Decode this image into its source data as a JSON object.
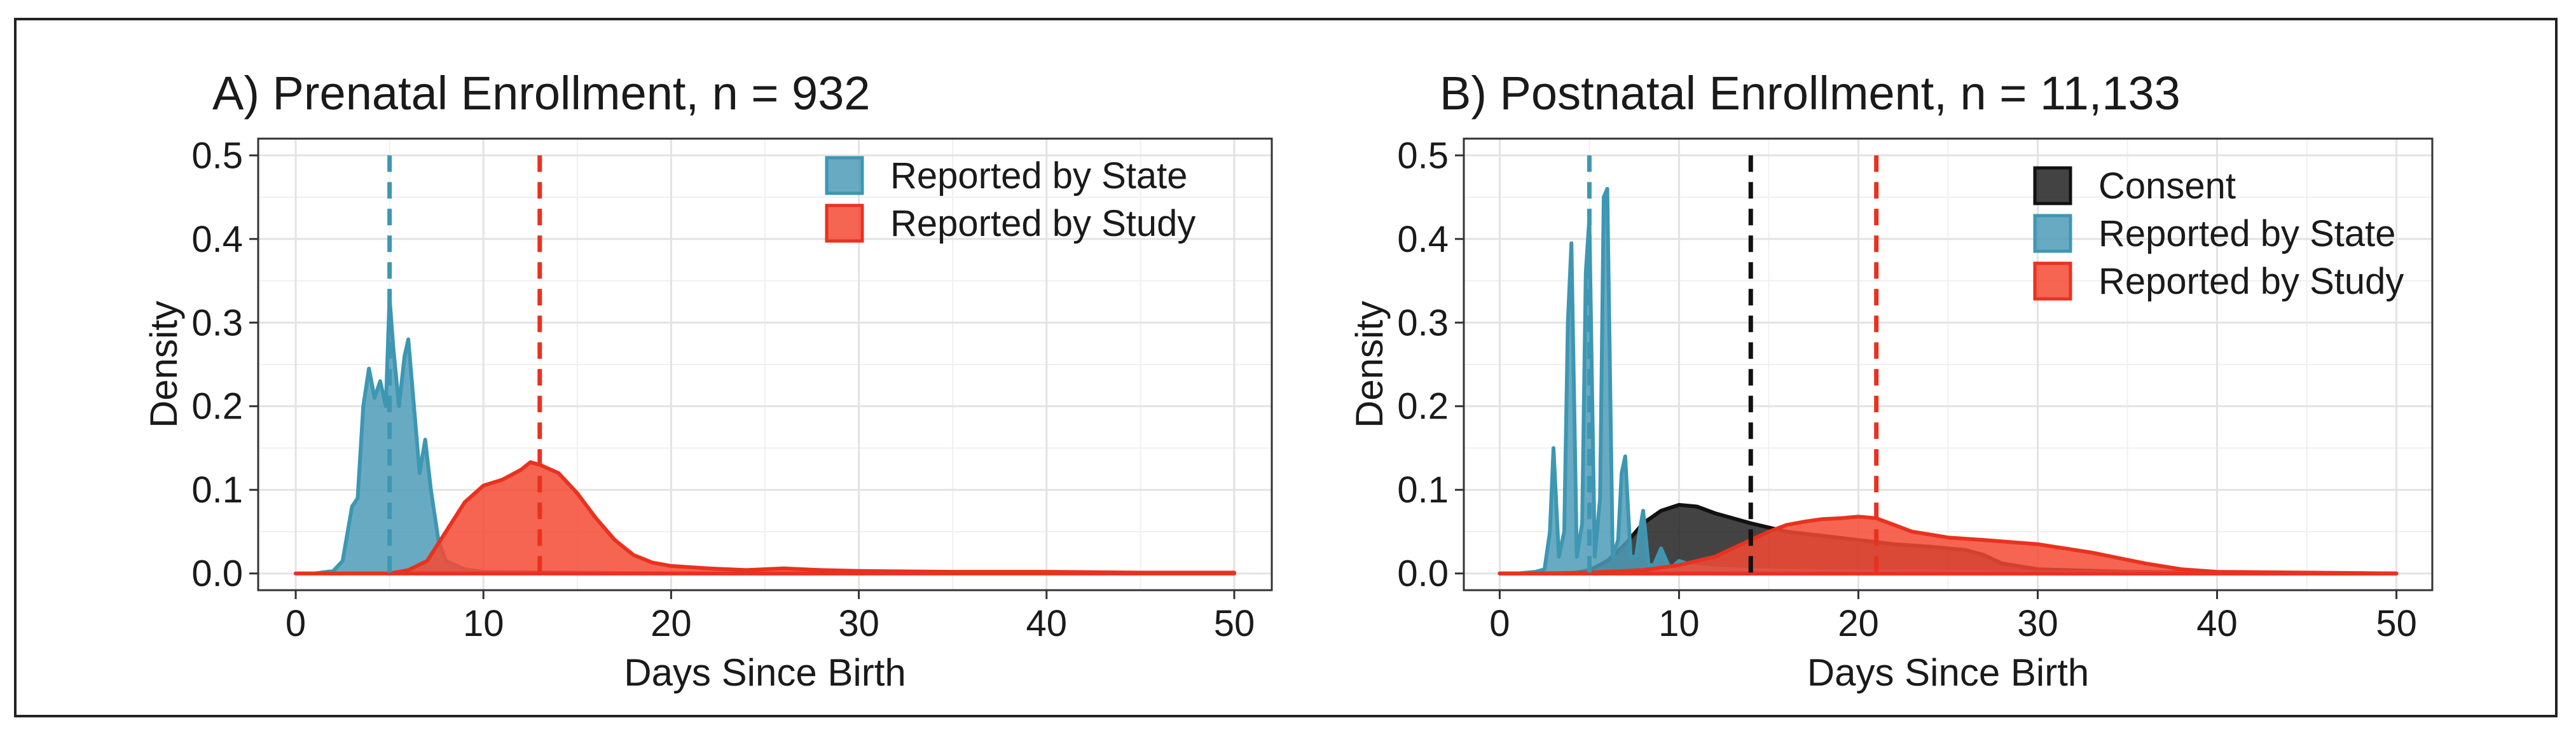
{
  "figure": {
    "panels": 2
  },
  "chart_data": [
    {
      "type": "area",
      "title": "A) Prenatal Enrollment, n = 932",
      "xlabel": "Days Since Birth",
      "ylabel": "Density",
      "xlim": [
        -2,
        52
      ],
      "ylim": [
        -0.02,
        0.52
      ],
      "xticks": [
        0,
        10,
        20,
        30,
        40,
        50
      ],
      "yticks": [
        0.0,
        0.1,
        0.2,
        0.3,
        0.4,
        0.5
      ],
      "xtick_labels": [
        "0",
        "10",
        "20",
        "30",
        "40",
        "50"
      ],
      "ytick_labels": [
        "0.0",
        "0.1",
        "0.2",
        "0.3",
        "0.4",
        "0.5"
      ],
      "grid": true,
      "legend_position": "top-right",
      "series": [
        {
          "name": "Reported by State",
          "fill": "#4f9bb8",
          "stroke": "#3d97b3",
          "fill_opacity": 0.85,
          "median": 5,
          "median_color": "#3d97b3",
          "x": [
            0,
            1,
            2,
            2.5,
            3,
            3.3,
            3.6,
            3.9,
            4.2,
            4.5,
            4.8,
            5.0,
            5.2,
            5.5,
            5.8,
            6.0,
            6.3,
            6.6,
            6.9,
            7.2,
            7.6,
            8,
            9,
            10,
            15,
            20,
            50
          ],
          "values": [
            0,
            0,
            0.003,
            0.015,
            0.08,
            0.09,
            0.2,
            0.245,
            0.21,
            0.23,
            0.2,
            0.33,
            0.27,
            0.2,
            0.26,
            0.28,
            0.2,
            0.12,
            0.16,
            0.1,
            0.04,
            0.015,
            0.005,
            0.002,
            0.001,
            0.0,
            0
          ]
        },
        {
          "name": "Reported by Study",
          "fill": "#f44a32",
          "stroke": "#e8321f",
          "fill_opacity": 0.85,
          "median": 13,
          "median_color": "#e8321f",
          "x": [
            0,
            5,
            6,
            7,
            8,
            9,
            10,
            11,
            12,
            12.5,
            13,
            14,
            15,
            16,
            17,
            18,
            19,
            20,
            22,
            24,
            26,
            28,
            30,
            35,
            40,
            45,
            50
          ],
          "values": [
            0,
            0.0,
            0.004,
            0.015,
            0.05,
            0.085,
            0.105,
            0.112,
            0.124,
            0.133,
            0.13,
            0.12,
            0.096,
            0.066,
            0.04,
            0.022,
            0.013,
            0.009,
            0.006,
            0.004,
            0.006,
            0.004,
            0.003,
            0.002,
            0.002,
            0.001,
            0.001
          ]
        }
      ]
    },
    {
      "type": "area",
      "title": "B) Postnatal Enrollment, n = 11,133",
      "xlabel": "Days Since Birth",
      "ylabel": "Density",
      "xlim": [
        -2,
        52
      ],
      "ylim": [
        -0.02,
        0.52
      ],
      "xticks": [
        0,
        10,
        20,
        30,
        40,
        50
      ],
      "yticks": [
        0.0,
        0.1,
        0.2,
        0.3,
        0.4,
        0.5
      ],
      "xtick_labels": [
        "0",
        "10",
        "20",
        "30",
        "40",
        "50"
      ],
      "ytick_labels": [
        "0.0",
        "0.1",
        "0.2",
        "0.3",
        "0.4",
        "0.5"
      ],
      "grid": true,
      "legend_position": "top-right",
      "series": [
        {
          "name": "Consent",
          "fill": "#222222",
          "stroke": "#111111",
          "fill_opacity": 0.85,
          "median": 14,
          "median_color": "#111111",
          "x": [
            0,
            4,
            5,
            6,
            7,
            8,
            9,
            10,
            11,
            12,
            14,
            16,
            18,
            20,
            22,
            24,
            26,
            27,
            28,
            30,
            35,
            40,
            50
          ],
          "values": [
            0,
            0.0,
            0.004,
            0.015,
            0.035,
            0.06,
            0.075,
            0.082,
            0.08,
            0.072,
            0.06,
            0.05,
            0.045,
            0.04,
            0.035,
            0.032,
            0.028,
            0.022,
            0.012,
            0.005,
            0.002,
            0.001,
            0
          ]
        },
        {
          "name": "Reported by State",
          "fill": "#4f9bb8",
          "stroke": "#3d97b3",
          "fill_opacity": 0.85,
          "median": 5,
          "median_color": "#3d97b3",
          "x": [
            0,
            1,
            2,
            2.5,
            2.8,
            3.0,
            3.3,
            3.6,
            3.8,
            4.0,
            4.3,
            4.6,
            4.8,
            5.0,
            5.3,
            5.6,
            5.8,
            6.0,
            6.3,
            6.6,
            6.8,
            7.0,
            7.3,
            7.6,
            7.8,
            8.0,
            8.3,
            8.6,
            9.0,
            9.5,
            10,
            11,
            12,
            14,
            16,
            20,
            30,
            50
          ],
          "values": [
            0,
            0,
            0.002,
            0.005,
            0.05,
            0.15,
            0.02,
            0.05,
            0.3,
            0.395,
            0.02,
            0.06,
            0.36,
            0.425,
            0.02,
            0.09,
            0.45,
            0.46,
            0.02,
            0.04,
            0.12,
            0.14,
            0.02,
            0.02,
            0.05,
            0.075,
            0.01,
            0.01,
            0.03,
            0.005,
            0.015,
            0.008,
            0.006,
            0.004,
            0.003,
            0.002,
            0.001,
            0
          ]
        },
        {
          "name": "Reported by Study",
          "fill": "#f44a32",
          "stroke": "#e8321f",
          "fill_opacity": 0.85,
          "median": 21,
          "median_color": "#e8321f",
          "x": [
            0,
            2,
            5,
            8,
            10,
            12,
            14,
            15,
            16,
            17,
            18,
            19,
            20,
            21,
            22,
            23,
            25,
            27,
            30,
            33,
            36,
            38,
            40,
            45,
            50
          ],
          "values": [
            0,
            0,
            0.001,
            0.004,
            0.01,
            0.02,
            0.04,
            0.05,
            0.058,
            0.062,
            0.065,
            0.066,
            0.068,
            0.066,
            0.058,
            0.05,
            0.043,
            0.04,
            0.035,
            0.025,
            0.012,
            0.005,
            0.002,
            0.001,
            0
          ]
        }
      ]
    }
  ]
}
